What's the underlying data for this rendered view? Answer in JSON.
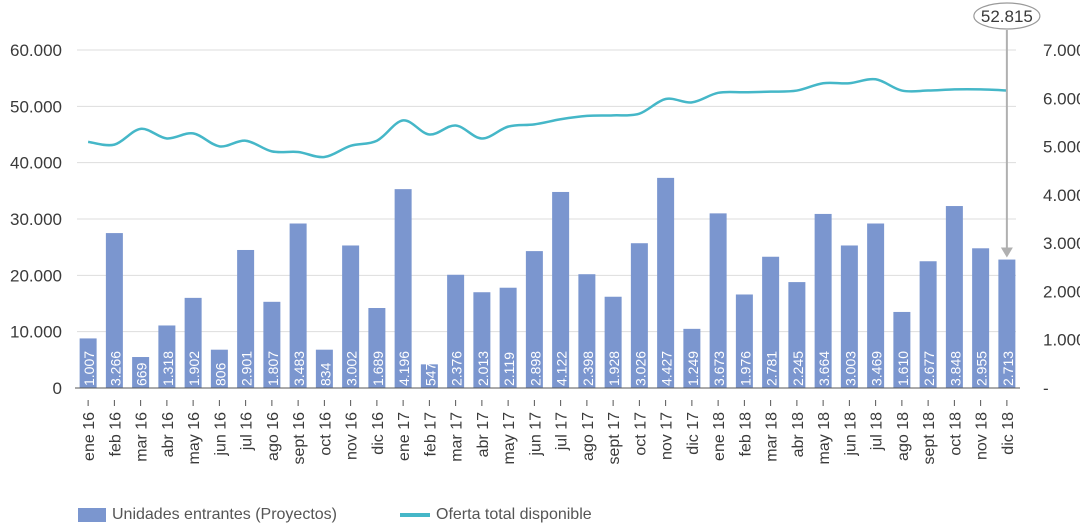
{
  "chart_data": {
    "type": "bar",
    "categories": [
      "ene 16",
      "feb 16",
      "mar 16",
      "abr 16",
      "may 16",
      "jun 16",
      "jul 16",
      "ago 16",
      "sept 16",
      "oct 16",
      "nov 16",
      "dic 16",
      "ene 17",
      "feb 17",
      "mar 17",
      "abr 17",
      "may 17",
      "jun 17",
      "jul 17",
      "ago 17",
      "sept 17",
      "oct 17",
      "nov 17",
      "dic 17",
      "ene 18",
      "feb 18",
      "mar 18",
      "abr 18",
      "may 18",
      "jun 18",
      "jul 18",
      "ago 18",
      "sept 18",
      "oct 18",
      "nov 18",
      "dic 18"
    ],
    "series": [
      {
        "name": "Unidades entrantes (Proyectos)",
        "type": "bar",
        "axis": "left",
        "color": "#7b96cf",
        "values": [
          8800,
          27500,
          5500,
          11100,
          16000,
          6800,
          24500,
          15300,
          29200,
          6800,
          25300,
          14200,
          35300,
          4200,
          20100,
          17000,
          17800,
          24300,
          34800,
          20200,
          16200,
          25700,
          37300,
          10500,
          31000,
          16600,
          23300,
          18800,
          30900,
          25300,
          29200,
          13500,
          22500,
          32300,
          24800,
          22800
        ],
        "point_labels": [
          "1.007",
          "3.266",
          "669",
          "1.318",
          "1.902",
          "806",
          "2.901",
          "1.807",
          "3.483",
          "834",
          "3.002",
          "1.689",
          "4.196",
          "547",
          "2.376",
          "2.013",
          "2.119",
          "2.898",
          "4.122",
          "2.398",
          "1.928",
          "3.026",
          "4.427",
          "1.249",
          "3.673",
          "1.976",
          "2.781",
          "2.245",
          "3.664",
          "3.003",
          "3.469",
          "1.610",
          "2.677",
          "3.848",
          "2.955",
          "2.713"
        ]
      },
      {
        "name": "Oferta total disponible",
        "type": "line",
        "axis": "left",
        "color": "#45b7c8",
        "values": [
          43700,
          43200,
          46000,
          44300,
          45200,
          42900,
          43900,
          42000,
          41900,
          41000,
          43000,
          43900,
          47500,
          45000,
          46600,
          44300,
          46400,
          46800,
          47700,
          48300,
          48400,
          48700,
          51300,
          50700,
          52400,
          52500,
          52600,
          52800,
          54100,
          54100,
          54800,
          52800,
          52800,
          53000,
          53000,
          52815
        ]
      }
    ],
    "y_left": {
      "ticks": [
        "0",
        "10.000",
        "20.000",
        "30.000",
        "40.000",
        "50.000",
        "60.000"
      ],
      "ylim": [
        0,
        60000
      ]
    },
    "y_right": {
      "ticks": [
        "-",
        "1.000",
        "2.000",
        "3.000",
        "4.000",
        "5.000",
        "6.000",
        "7.000"
      ],
      "ylim": [
        0,
        7000
      ]
    },
    "callout": "52.815",
    "legend_position": "bottom-left",
    "grid": true,
    "colors": {
      "grid": "#dddddd",
      "axis": "#555555",
      "callout_arrow": "#b0b0b0"
    }
  }
}
